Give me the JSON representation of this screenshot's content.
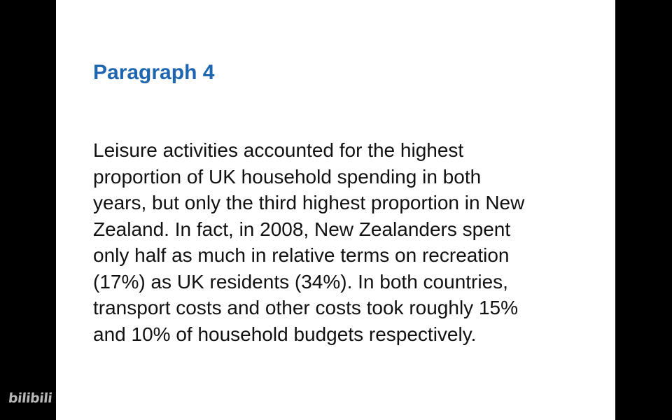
{
  "slide": {
    "heading": "Paragraph 4",
    "paragraph_lines": [
      "Leisure activities accounted for the highest",
      "proportion of UK household spending in both",
      "years, but only the third highest proportion in New",
      "Zealand. In fact, in 2008, New Zealanders spent",
      "only half as much in relative terms on recreation",
      "(17%) as UK residents (34%). In both countries,",
      "transport costs and other costs took roughly 15%",
      "and 10% of household budgets respectively."
    ]
  },
  "watermark": {
    "text": "bilibili"
  },
  "colors": {
    "heading": "#1f66b0",
    "text": "#111111",
    "background": "#ffffff",
    "letterbox": "#000000"
  }
}
